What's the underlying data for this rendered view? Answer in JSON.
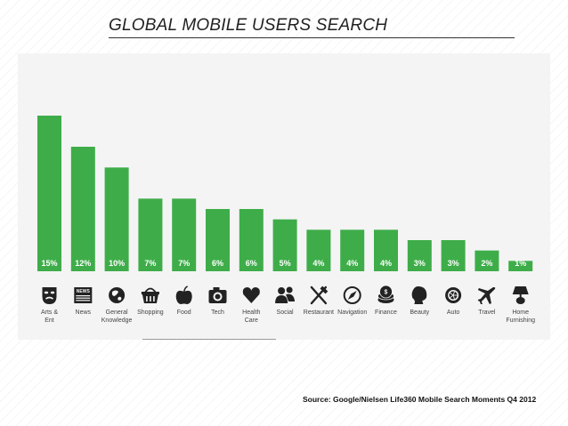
{
  "slide": {
    "title": "GLOBAL MOBILE USERS SEARCH",
    "source": "Source: Google/Nielsen Life360 Mobile Search Moments Q4 2012"
  },
  "colors": {
    "bar": "#3ead49",
    "label_text": "#ffffff",
    "category_text": "#444444",
    "icon": "#222222"
  },
  "chart_data": {
    "type": "bar",
    "title": "",
    "xlabel": "",
    "ylabel": "",
    "ylim": [
      0,
      15
    ],
    "grid": false,
    "legend": "none",
    "categories": [
      "Arts & Ent",
      "News",
      "General Knowledge",
      "Shopping",
      "Food",
      "Tech",
      "Health Care",
      "Social",
      "Restaurant",
      "Navigation",
      "Finance",
      "Beauty",
      "Auto",
      "Travel",
      "Home Furnishing"
    ],
    "category_lines": [
      [
        "Arts &",
        "Ent"
      ],
      [
        "News"
      ],
      [
        "General",
        "Knowledge"
      ],
      [
        "Shopping"
      ],
      [
        "Food"
      ],
      [
        "Tech"
      ],
      [
        "Health",
        "Care"
      ],
      [
        "Social"
      ],
      [
        "Restaurant"
      ],
      [
        "Navigation"
      ],
      [
        "Finance"
      ],
      [
        "Beauty"
      ],
      [
        "Auto"
      ],
      [
        "Travel"
      ],
      [
        "Home",
        "Furnishing"
      ]
    ],
    "values": [
      15,
      12,
      10,
      7,
      7,
      6,
      6,
      5,
      4,
      4,
      4,
      3,
      3,
      2,
      1
    ],
    "data_labels": [
      "15%",
      "12%",
      "10%",
      "7%",
      "7%",
      "6%",
      "6%",
      "5%",
      "4%",
      "4%",
      "4%",
      "3%",
      "3%",
      "2%",
      "1%"
    ],
    "icons": [
      "theater-masks-icon",
      "newspaper-icon",
      "globe-icon",
      "shopping-basket-icon",
      "apple-icon",
      "camera-icon",
      "heart-icon",
      "people-icon",
      "fork-knife-icon",
      "compass-icon",
      "coins-icon",
      "woman-silhouette-icon",
      "wheel-icon",
      "airplane-icon",
      "lamp-icon"
    ]
  }
}
